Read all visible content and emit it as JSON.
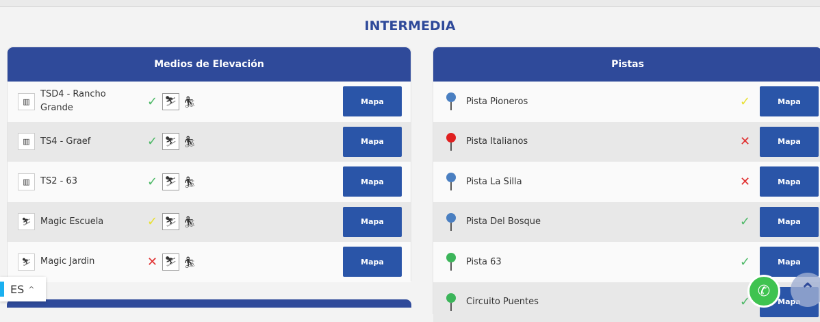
{
  "section_title": "INTERMEDIA",
  "lifts": {
    "title": "Medios de Elevación",
    "items": [
      {
        "name": "TSD4 - Rancho Grande",
        "icon": "chairlift-icon",
        "status": "open"
      },
      {
        "name": "TS4 - Graef",
        "icon": "chairlift-icon",
        "status": "open"
      },
      {
        "name": "TS2 - 63",
        "icon": "chairlift-icon",
        "status": "open"
      },
      {
        "name": "Magic Escuela",
        "icon": "magic-carpet-icon",
        "status": "warning"
      },
      {
        "name": "Magic Jardin",
        "icon": "magic-carpet-icon",
        "status": "closed"
      }
    ]
  },
  "slopes": {
    "title": "Pistas",
    "items": [
      {
        "name": "Pista Pioneros",
        "color": "#4a7fc1",
        "status": "warning"
      },
      {
        "name": "Pista Italianos",
        "color": "#e02020",
        "status": "closed"
      },
      {
        "name": "Pista La Silla",
        "color": "#4a7fc1",
        "status": "closed"
      },
      {
        "name": "Pista Del Bosque",
        "color": "#4a7fc1",
        "status": "open"
      },
      {
        "name": "Pista 63",
        "color": "#3cb55a",
        "status": "open"
      },
      {
        "name": "Circuito Puentes",
        "color": "#3cb55a",
        "status": "open"
      }
    ]
  },
  "map_label": "Mapa",
  "language": "ES",
  "status_glyphs": {
    "open": "✓",
    "warning": "✓",
    "closed": "✕"
  }
}
